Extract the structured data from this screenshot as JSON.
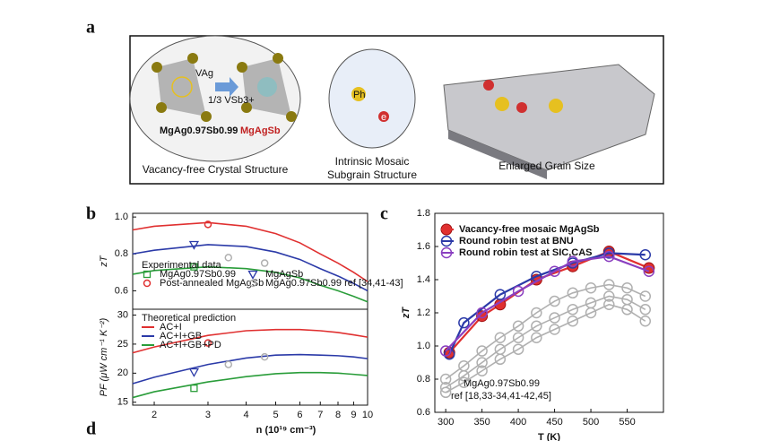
{
  "figure": {
    "panel_labels": [
      "a",
      "b",
      "c",
      "d"
    ],
    "diagram": {
      "vacancy": "VAg",
      "antisite": "1/3 VSb3+",
      "left_formula": "MgAg0.97Sb0.99",
      "right_formula": "MgAgSb",
      "phonon": "Ph",
      "electron": "e",
      "caption_left": "Vacancy-free Crystal Structure",
      "caption_mid": [
        "Intrinsic Mosaic",
        "Subgrain Structure"
      ],
      "caption_right": "Enlarged Grain Size"
    }
  },
  "chart_data": [
    {
      "type": "line",
      "ylabel": "zT",
      "logx": true,
      "xlim": [
        1.7,
        10
      ],
      "ylim": [
        0.5,
        1.02
      ],
      "yticks": [
        0.6,
        0.8,
        {
          "value": 1,
          "label": "1.0"
        }
      ],
      "legend_title": "Experimental data",
      "legend": "lower-left",
      "series": [
        {
          "color": "#e03030",
          "line": true,
          "x": [
            1.7,
            2,
            3,
            4,
            5,
            6,
            7,
            8,
            9,
            10
          ],
          "values": [
            0.93,
            0.95,
            0.97,
            0.95,
            0.91,
            0.86,
            0.8,
            0.75,
            0.7,
            0.65
          ]
        },
        {
          "color": "#2b3aa8",
          "line": true,
          "x": [
            1.7,
            2,
            3,
            4,
            5,
            6,
            7,
            8,
            9,
            10
          ],
          "values": [
            0.8,
            0.82,
            0.85,
            0.84,
            0.81,
            0.77,
            0.72,
            0.68,
            0.64,
            0.6
          ]
        },
        {
          "color": "#2a9d3a",
          "line": true,
          "x": [
            1.7,
            2,
            3,
            4,
            5,
            6,
            7,
            8,
            9,
            10
          ],
          "values": [
            0.69,
            0.71,
            0.73,
            0.72,
            0.7,
            0.67,
            0.63,
            0.6,
            0.57,
            0.54
          ]
        },
        {
          "name": "MgAg0.97Sb0.99",
          "color": "#2a9d3a",
          "marker": "square",
          "x": [
            2.7
          ],
          "values": [
            0.73
          ]
        },
        {
          "name": "MgAgSb",
          "color": "#2b3aa8",
          "marker": "triangle",
          "x": [
            2.7
          ],
          "values": [
            0.85
          ]
        },
        {
          "name": "Post-annealed MgAgSb",
          "color": "#e03030",
          "marker": "circle",
          "x": [
            3.0
          ],
          "values": [
            0.96
          ]
        },
        {
          "name": "MgAg0.97Sb0.99 ref [34,41-43]",
          "color": "#b0b0b0",
          "marker": "circle",
          "x": [
            3.5,
            4.6
          ],
          "values": [
            0.78,
            0.75
          ]
        }
      ]
    },
    {
      "type": "line",
      "ylabel": "PF (μW cm⁻¹ K⁻²)",
      "xlabel": "n (10¹⁹ cm⁻³)",
      "logx": true,
      "xlim": [
        1.7,
        10
      ],
      "ylim": [
        14.5,
        31
      ],
      "xticks": [
        2,
        3,
        4,
        5,
        6,
        7,
        8,
        9,
        10
      ],
      "yticks": [
        15,
        20,
        25,
        30
      ],
      "legend_title": "Theoretical prediction",
      "legend": "upper-left",
      "series": [
        {
          "name": "AC+I",
          "color": "#e03030",
          "line": true,
          "x": [
            1.7,
            2,
            3,
            4,
            5,
            6,
            7,
            8,
            9,
            10
          ],
          "values": [
            23.5,
            24.5,
            26.5,
            27.3,
            27.5,
            27.5,
            27.3,
            27,
            26.6,
            26.2
          ]
        },
        {
          "name": "AC+I+GB",
          "color": "#2b3aa8",
          "line": true,
          "x": [
            1.7,
            2,
            3,
            4,
            5,
            6,
            7,
            8,
            9,
            10
          ],
          "values": [
            18.2,
            19.3,
            21.5,
            22.6,
            23.1,
            23.2,
            23.1,
            23,
            22.8,
            22.5
          ]
        },
        {
          "name": "AC+I+GB+PD",
          "color": "#2a9d3a",
          "line": true,
          "x": [
            1.7,
            2,
            3,
            4,
            5,
            6,
            7,
            8,
            9,
            10
          ],
          "values": [
            15.8,
            16.8,
            18.5,
            19.4,
            19.9,
            20.1,
            20.1,
            20,
            19.8,
            19.6
          ]
        },
        {
          "color": "#2a9d3a",
          "marker": "square",
          "x": [
            2.7
          ],
          "values": [
            17.4
          ]
        },
        {
          "color": "#2b3aa8",
          "marker": "triangle",
          "x": [
            2.7
          ],
          "values": [
            20.2
          ]
        },
        {
          "color": "#e03030",
          "marker": "circle",
          "x": [
            3.0
          ],
          "values": [
            25.2
          ]
        },
        {
          "color": "#b0b0b0",
          "marker": "circle",
          "x": [
            3.5,
            4.6
          ],
          "values": [
            21.5,
            22.8
          ]
        }
      ]
    },
    {
      "type": "line",
      "ylabel": "zT",
      "xlabel": "T (K)",
      "xlim": [
        285,
        600
      ],
      "ylim": [
        0.6,
        1.8
      ],
      "xticks": [
        300,
        350,
        400,
        450,
        500,
        550
      ],
      "yticks": [
        0.6,
        0.8,
        {
          "value": 1,
          "label": "1.0"
        },
        1.2,
        1.4,
        1.6,
        1.8
      ],
      "legend": "upper-left",
      "annotations": [
        "MgAg0.97Sb0.99",
        "ref [18,33-34,41-42,45]"
      ],
      "series": [
        {
          "color": "#b0b0b0",
          "line": true,
          "marker": "circle",
          "x": [
            300,
            325,
            350,
            375,
            400,
            425,
            450,
            475,
            500,
            525,
            550,
            575
          ],
          "values": [
            0.8,
            0.88,
            0.97,
            1.05,
            1.12,
            1.2,
            1.27,
            1.32,
            1.35,
            1.37,
            1.35,
            1.3
          ]
        },
        {
          "color": "#b0b0b0",
          "line": true,
          "marker": "circle",
          "x": [
            300,
            325,
            350,
            375,
            400,
            425,
            450,
            475,
            500,
            525,
            550,
            575
          ],
          "values": [
            0.75,
            0.82,
            0.9,
            0.98,
            1.05,
            1.12,
            1.17,
            1.22,
            1.26,
            1.3,
            1.28,
            1.22
          ]
        },
        {
          "color": "#b0b0b0",
          "line": true,
          "marker": "circle",
          "x": [
            300,
            325,
            350,
            375,
            400,
            425,
            450,
            475,
            500,
            525,
            550,
            575
          ],
          "values": [
            0.72,
            0.78,
            0.85,
            0.92,
            0.98,
            1.05,
            1.1,
            1.15,
            1.2,
            1.25,
            1.22,
            1.15
          ]
        },
        {
          "name": "Vacancy-free mosaic MgAgSb",
          "color": "#e03030",
          "line": true,
          "marker": "dot",
          "x": [
            305,
            350,
            375,
            425,
            475,
            525,
            580
          ],
          "values": [
            0.96,
            1.18,
            1.25,
            1.4,
            1.48,
            1.57,
            1.47
          ]
        },
        {
          "name": "Round robin test at BNU",
          "color": "#2b3aa8",
          "line": true,
          "marker": "circle",
          "x": [
            305,
            325,
            375,
            425,
            475,
            525,
            575
          ],
          "values": [
            0.95,
            1.14,
            1.31,
            1.42,
            1.5,
            1.56,
            1.55
          ]
        },
        {
          "name": "Round robin test at SIC,CAS",
          "color": "#8a3fc0",
          "line": true,
          "marker": "circle",
          "x": [
            300,
            350,
            400,
            450,
            475,
            525,
            580
          ],
          "values": [
            0.97,
            1.2,
            1.33,
            1.45,
            1.51,
            1.54,
            1.45
          ]
        }
      ]
    }
  ]
}
